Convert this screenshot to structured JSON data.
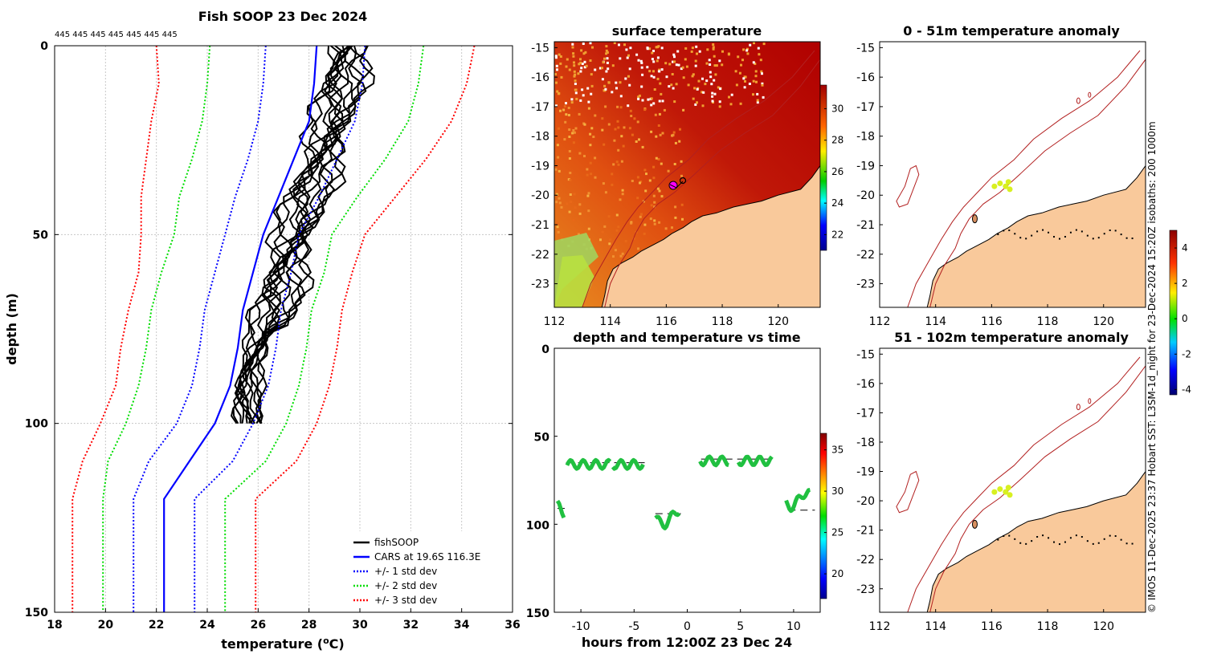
{
  "figure": {
    "credit": "© IMOS 11-Dec-2025 23:37 Hobart SST: L3SM-1d_night for 23-Dec-2024 15:20Z isobaths: 200  1000m"
  },
  "colors": {
    "fishsoop": "#000000",
    "cars": "#0000ff",
    "std1": "#0000ff",
    "std2": "#00dd00",
    "std3": "#ff0000",
    "land": "#f9c99b",
    "isobath": "#b22020",
    "anomaly_marker": "#d8f020"
  },
  "chart_data": [
    {
      "id": "profile",
      "type": "line",
      "title": "Fish SOOP 23 Dec 2024",
      "subtitle": "445 445 445 445 445 445 445",
      "xlabel": "temperature (",
      "xlabel_sup": "o",
      "xlabel_end": "C)",
      "ylabel": "depth (m)",
      "xlim": [
        18,
        36
      ],
      "ylim": [
        0,
        150
      ],
      "y_reversed": true,
      "xticks": [
        18,
        20,
        22,
        24,
        26,
        28,
        30,
        32,
        34,
        36
      ],
      "yticks": [
        0,
        50,
        100,
        150
      ],
      "legend_position": "bottom-right",
      "series": [
        {
          "name": "fishSOOP",
          "style": "solid",
          "depth": [
            0,
            5,
            10,
            15,
            20,
            25,
            30,
            35,
            40,
            45,
            50,
            55,
            60,
            65,
            70,
            75,
            80,
            85,
            90,
            95,
            100
          ],
          "values": [
            29.4,
            29.3,
            29.2,
            29.0,
            28.8,
            28.6,
            28.4,
            28.1,
            27.8,
            27.6,
            27.4,
            27.1,
            26.9,
            26.8,
            26.6,
            26.2,
            25.9,
            25.6,
            25.5,
            25.5,
            25.6
          ]
        },
        {
          "name": "CARS at 19.6S 116.3E",
          "style": "solid",
          "depth": [
            0,
            10,
            20,
            30,
            40,
            50,
            60,
            70,
            80,
            90,
            100,
            110,
            120,
            130,
            140,
            150
          ],
          "values": [
            28.3,
            28.2,
            28.0,
            27.4,
            26.8,
            26.2,
            25.8,
            25.4,
            25.2,
            24.9,
            24.3,
            23.3,
            22.3,
            22.3,
            22.3,
            22.3
          ]
        },
        {
          "name": "+/- 1 std dev",
          "style": "dotted",
          "pair": true,
          "depth": [
            0,
            10,
            20,
            30,
            40,
            50,
            60,
            70,
            80,
            90,
            100,
            110,
            120,
            130,
            140,
            150
          ],
          "upper": [
            30.2,
            30.1,
            29.8,
            29.1,
            28.4,
            27.6,
            27.3,
            26.9,
            26.7,
            26.4,
            25.8,
            25.0,
            23.5,
            23.5,
            23.5,
            23.5
          ],
          "lower": [
            26.3,
            26.2,
            26.0,
            25.6,
            25.1,
            24.7,
            24.3,
            23.9,
            23.7,
            23.4,
            22.8,
            21.7,
            21.1,
            21.1,
            21.1,
            21.1
          ]
        },
        {
          "name": "+/- 2 std dev",
          "style": "dotted",
          "pair": true,
          "depth": [
            0,
            10,
            20,
            30,
            40,
            50,
            60,
            70,
            80,
            90,
            100,
            110,
            120,
            130,
            140,
            150
          ],
          "upper": [
            32.5,
            32.3,
            31.9,
            31.0,
            29.9,
            28.9,
            28.6,
            28.1,
            27.9,
            27.6,
            27.1,
            26.3,
            24.7,
            24.7,
            24.7,
            24.7
          ],
          "lower": [
            24.1,
            24.0,
            23.8,
            23.4,
            22.9,
            22.7,
            22.2,
            21.8,
            21.6,
            21.3,
            20.8,
            20.1,
            19.9,
            19.9,
            19.9,
            19.9
          ]
        },
        {
          "name": "+/- 3 std dev",
          "style": "dotted",
          "pair": true,
          "depth": [
            0,
            10,
            20,
            30,
            40,
            50,
            60,
            70,
            80,
            90,
            100,
            110,
            120,
            130,
            140,
            150
          ],
          "upper": [
            34.5,
            34.2,
            33.6,
            32.6,
            31.4,
            30.2,
            29.7,
            29.3,
            29.1,
            28.8,
            28.3,
            27.5,
            25.9,
            25.9,
            25.9,
            25.9
          ],
          "lower": [
            22.0,
            22.1,
            21.8,
            21.6,
            21.4,
            21.4,
            21.3,
            20.9,
            20.6,
            20.4,
            19.8,
            19.1,
            18.7,
            18.7,
            18.7,
            18.7
          ]
        }
      ]
    },
    {
      "id": "surface-temperature",
      "type": "heatmap",
      "title": "surface temperature",
      "xlim": [
        112,
        121.5
      ],
      "ylim": [
        -23.8,
        -14.8
      ],
      "xticks": [
        112,
        114,
        116,
        118,
        120
      ],
      "yticks": [
        -15,
        -16,
        -17,
        -18,
        -19,
        -20,
        -21,
        -22,
        -23
      ],
      "colorbar_ticks": [
        22,
        24,
        26,
        28,
        30
      ],
      "colorbar_range": [
        21,
        31.5
      ]
    },
    {
      "id": "depth-temp-time",
      "type": "scatter",
      "title": "depth and temperature vs time",
      "xlabel": "hours from 12:00Z 23 Dec 24",
      "xlim": [
        -12.5,
        12.5
      ],
      "ylim": [
        0,
        150
      ],
      "y_reversed": true,
      "xticks": [
        -10,
        -5,
        0,
        5,
        10
      ],
      "yticks": [
        0,
        50,
        100,
        150
      ],
      "colorbar_ticks": [
        20,
        25,
        30,
        35
      ],
      "colorbar_range": [
        17,
        37
      ],
      "profile_hours": [
        -11.4,
        -7.1,
        -4.0,
        -2.3,
        -1.2,
        4.1,
        4.7,
        8.0,
        11.7
      ],
      "bottom_depths": [
        {
          "hours": [
            -12.2,
            -11.4
          ],
          "depth": 91
        },
        {
          "hours": [
            -11.4,
            -4.0
          ],
          "depth": 65
        },
        {
          "hours": [
            -3.0,
            -0.6
          ],
          "depth": 94
        },
        {
          "hours": [
            1.3,
            8.0
          ],
          "depth": 63
        },
        {
          "hours": [
            9.5,
            12.0
          ],
          "depth": 92
        }
      ]
    },
    {
      "id": "anomaly-0-51",
      "type": "heatmap",
      "title": "0 - 51m temperature anomaly",
      "xlim": [
        112,
        121.5
      ],
      "ylim": [
        -23.8,
        -14.8
      ],
      "xticks": [
        112,
        114,
        116,
        118,
        120
      ],
      "yticks": [
        -15,
        -16,
        -17,
        -18,
        -19,
        -20,
        -21,
        -22,
        -23
      ]
    },
    {
      "id": "anomaly-51-102",
      "type": "heatmap",
      "title": "51 - 102m temperature anomaly",
      "xlim": [
        112,
        121.5
      ],
      "ylim": [
        -23.8,
        -14.8
      ],
      "xticks": [
        112,
        114,
        116,
        118,
        120
      ],
      "yticks": [
        -15,
        -16,
        -17,
        -18,
        -19,
        -20,
        -21,
        -22,
        -23
      ],
      "colorbar_ticks": [
        -4,
        -2,
        0,
        2,
        4
      ],
      "colorbar_range": [
        -4.3,
        5
      ]
    }
  ]
}
